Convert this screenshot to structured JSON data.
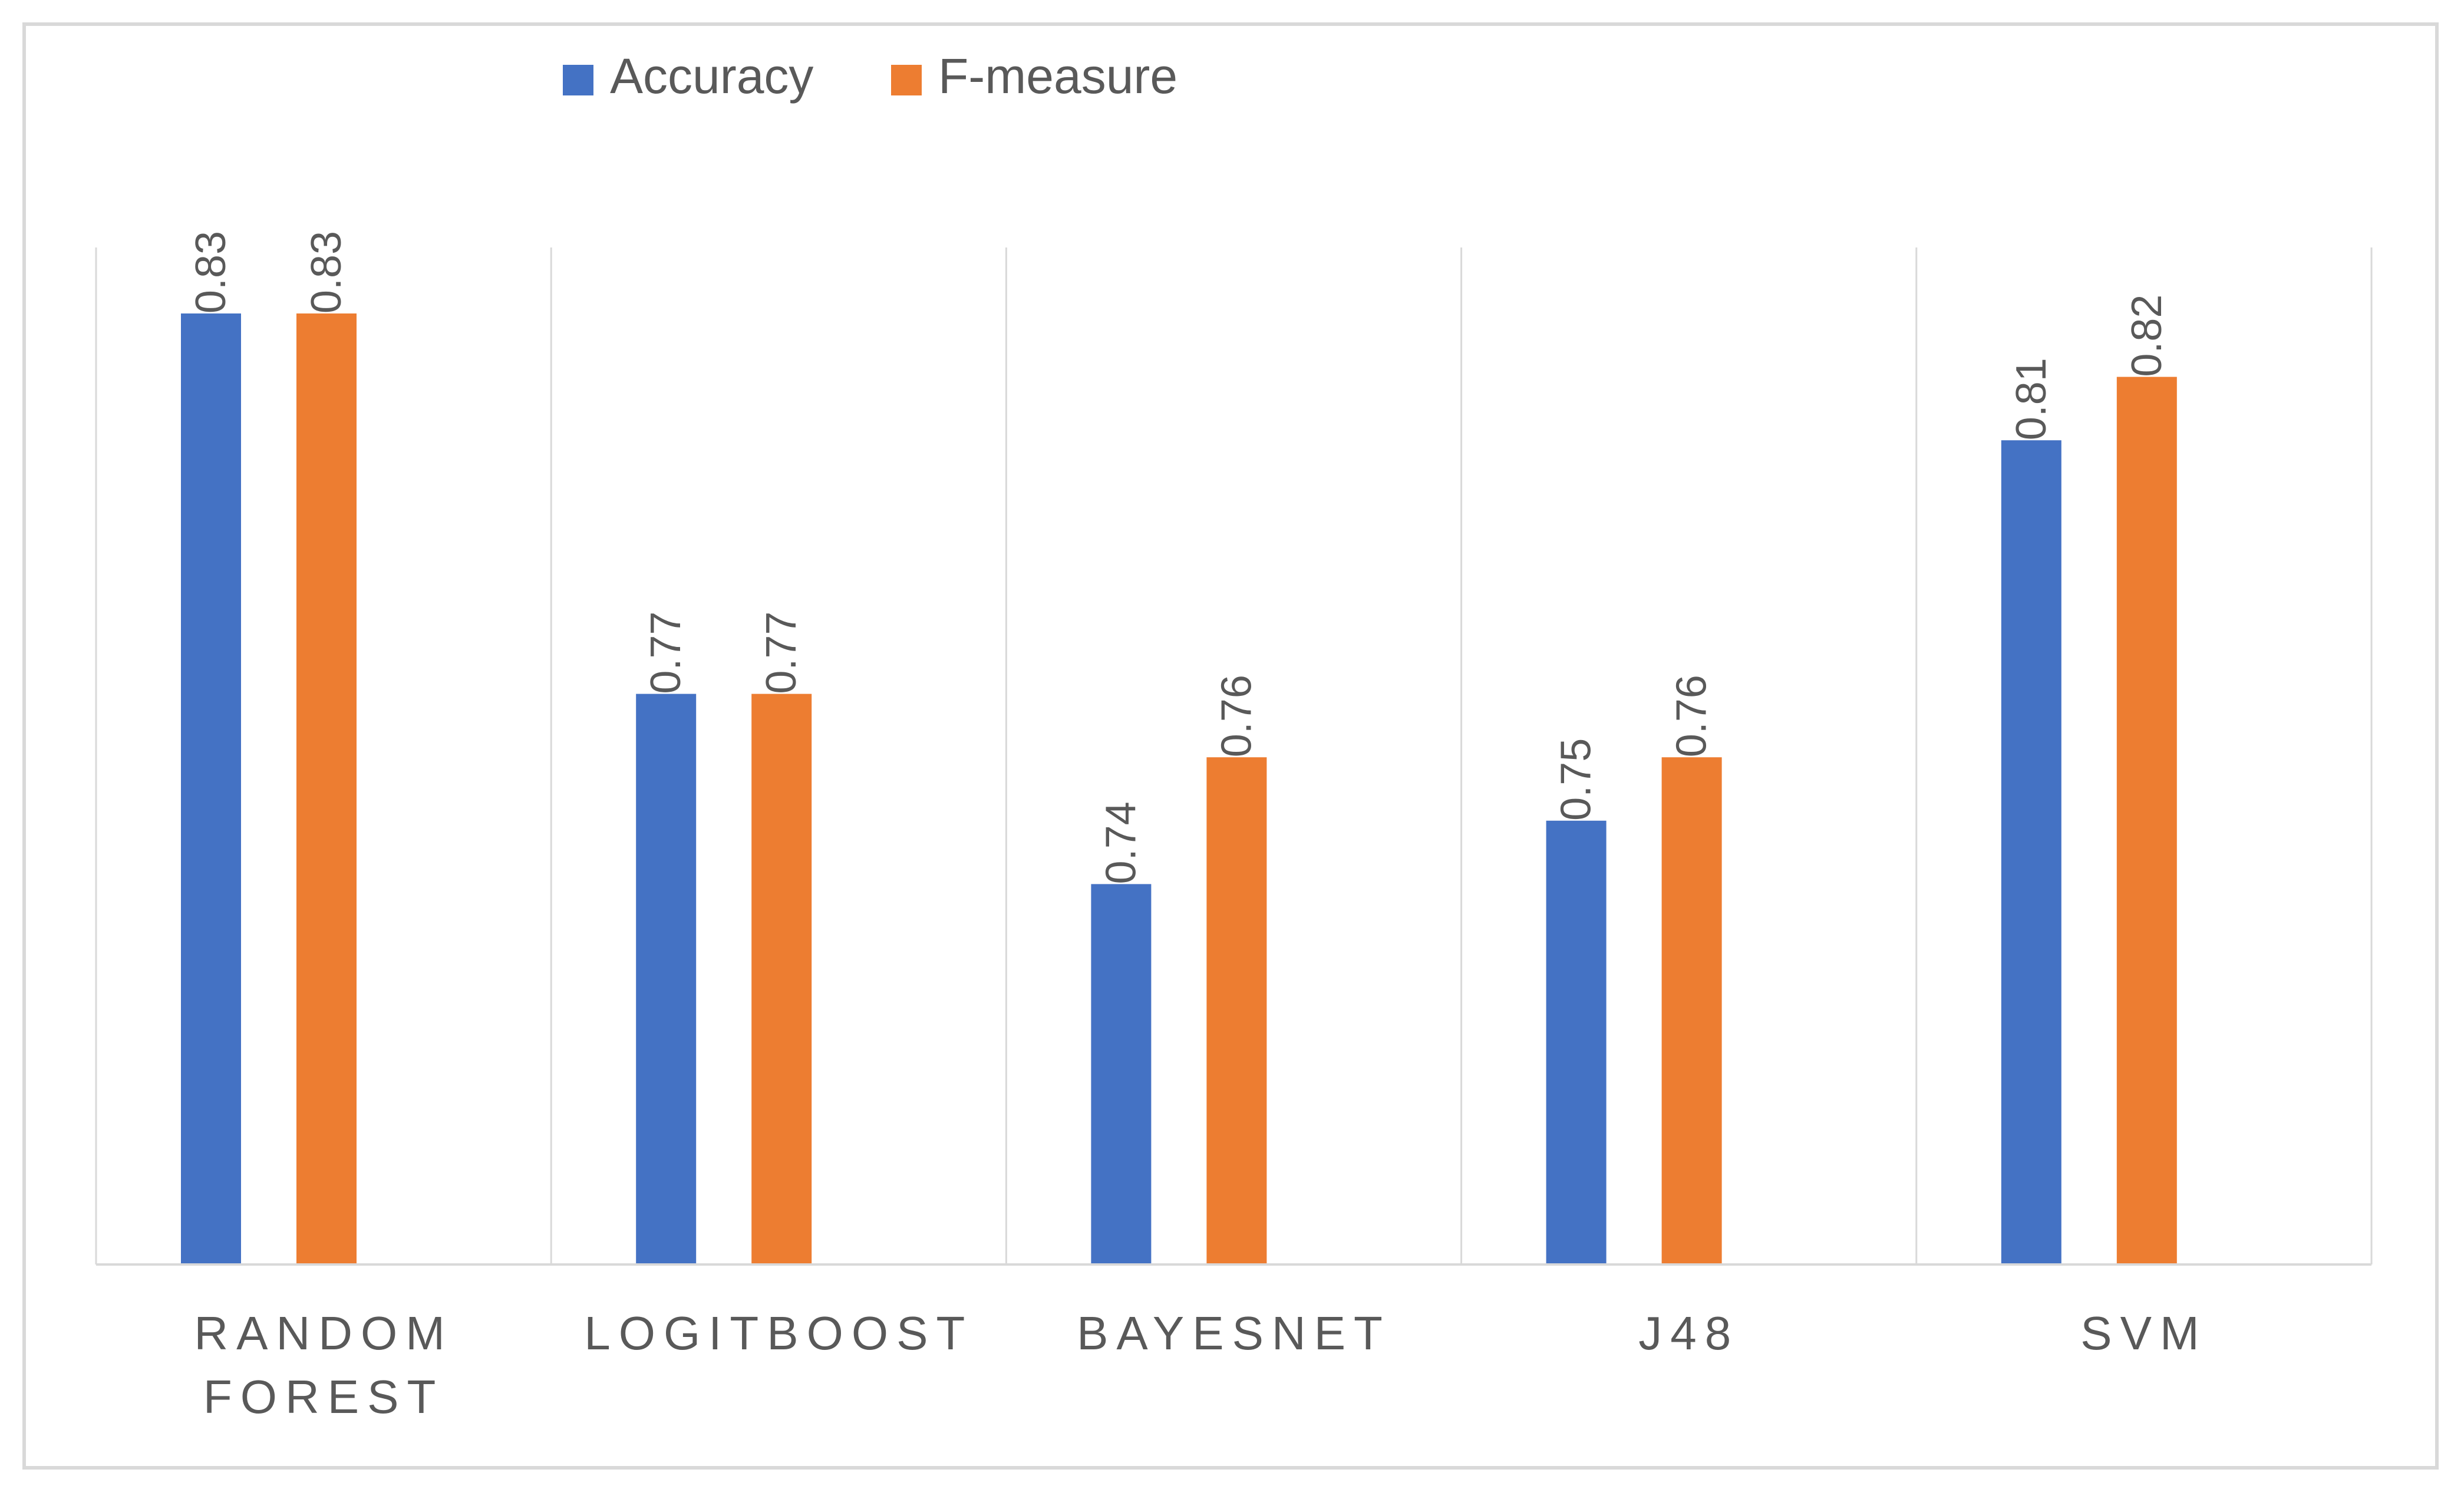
{
  "chart_data": {
    "type": "bar",
    "categories": [
      "RANDOM FOREST",
      "LOGITBOOST",
      "BAYESNET",
      "J48",
      "SVM"
    ],
    "series": [
      {
        "name": "Accuracy",
        "values": [
          0.83,
          0.77,
          0.74,
          0.75,
          0.81
        ],
        "labels": [
          "0.83",
          "0.77",
          "0.74",
          "0.75",
          "0.81"
        ],
        "color": "#4472c4"
      },
      {
        "name": "F-measure",
        "values": [
          0.83,
          0.77,
          0.76,
          0.76,
          0.82
        ],
        "labels": [
          "0.83",
          "0.77",
          "0.76",
          "0.76",
          "0.82"
        ],
        "color": "#ed7d31"
      }
    ],
    "title": "",
    "xlabel": "",
    "ylabel": "",
    "ylim": [
      0.68,
      0.83
    ],
    "grid": "vertical category separators",
    "legend": "top-left",
    "data_labels": "rotated above bars"
  }
}
